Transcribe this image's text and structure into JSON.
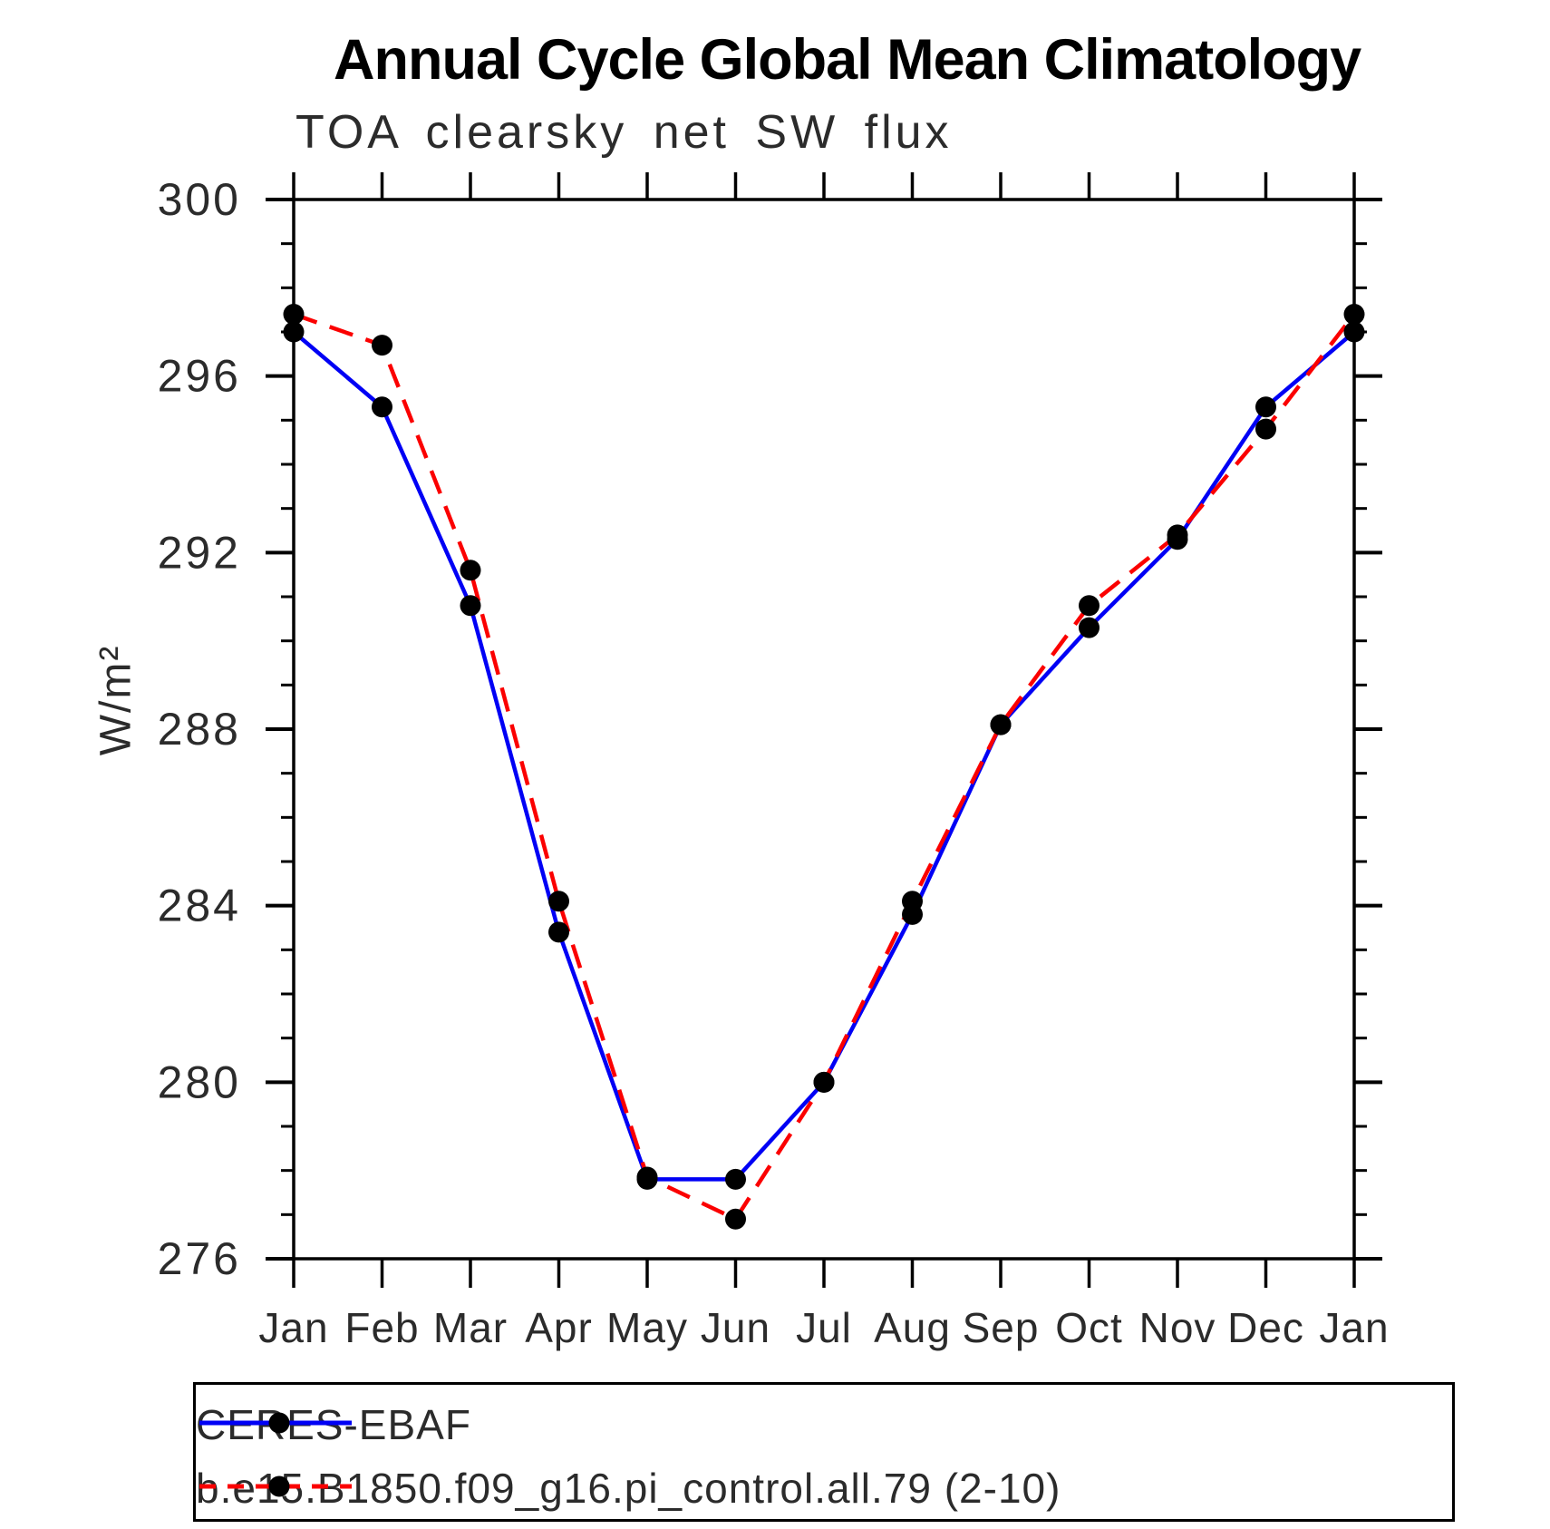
{
  "title": "Annual Cycle Global Mean Climatology",
  "subtitle": "TOA clearsky net SW flux",
  "y_axis_label": "W/m²",
  "chart_data": {
    "type": "line",
    "x_categories": [
      "Jan",
      "Feb",
      "Mar",
      "Apr",
      "May",
      "Jun",
      "Jul",
      "Aug",
      "Sep",
      "Oct",
      "Nov",
      "Dec",
      "Jan"
    ],
    "series": [
      {
        "name": "CERES-EBAF",
        "color": "#0000f5",
        "line_style": "solid",
        "marker": "filled-circle",
        "marker_color": "#000000",
        "values": [
          297.0,
          295.3,
          290.8,
          283.4,
          277.8,
          277.8,
          280.0,
          283.8,
          288.1,
          290.3,
          292.3,
          295.3,
          297.0
        ]
      },
      {
        "name": "b.e15.B1850.f09_g16.pi_control.all.79 (2-10)",
        "color": "#fb0000",
        "line_style": "dashed",
        "marker": "filled-circle",
        "marker_color": "#000000",
        "values": [
          297.4,
          296.7,
          291.6,
          284.1,
          277.85,
          276.9,
          280.0,
          284.1,
          288.1,
          290.8,
          292.4,
          294.8,
          297.4
        ]
      }
    ],
    "ylim": [
      276,
      300
    ],
    "y_major_ticks": [
      276,
      280,
      284,
      288,
      292,
      296,
      300
    ],
    "y_minor_step": 1,
    "grid": false,
    "legend_position": "bottom-left",
    "frame": true
  }
}
